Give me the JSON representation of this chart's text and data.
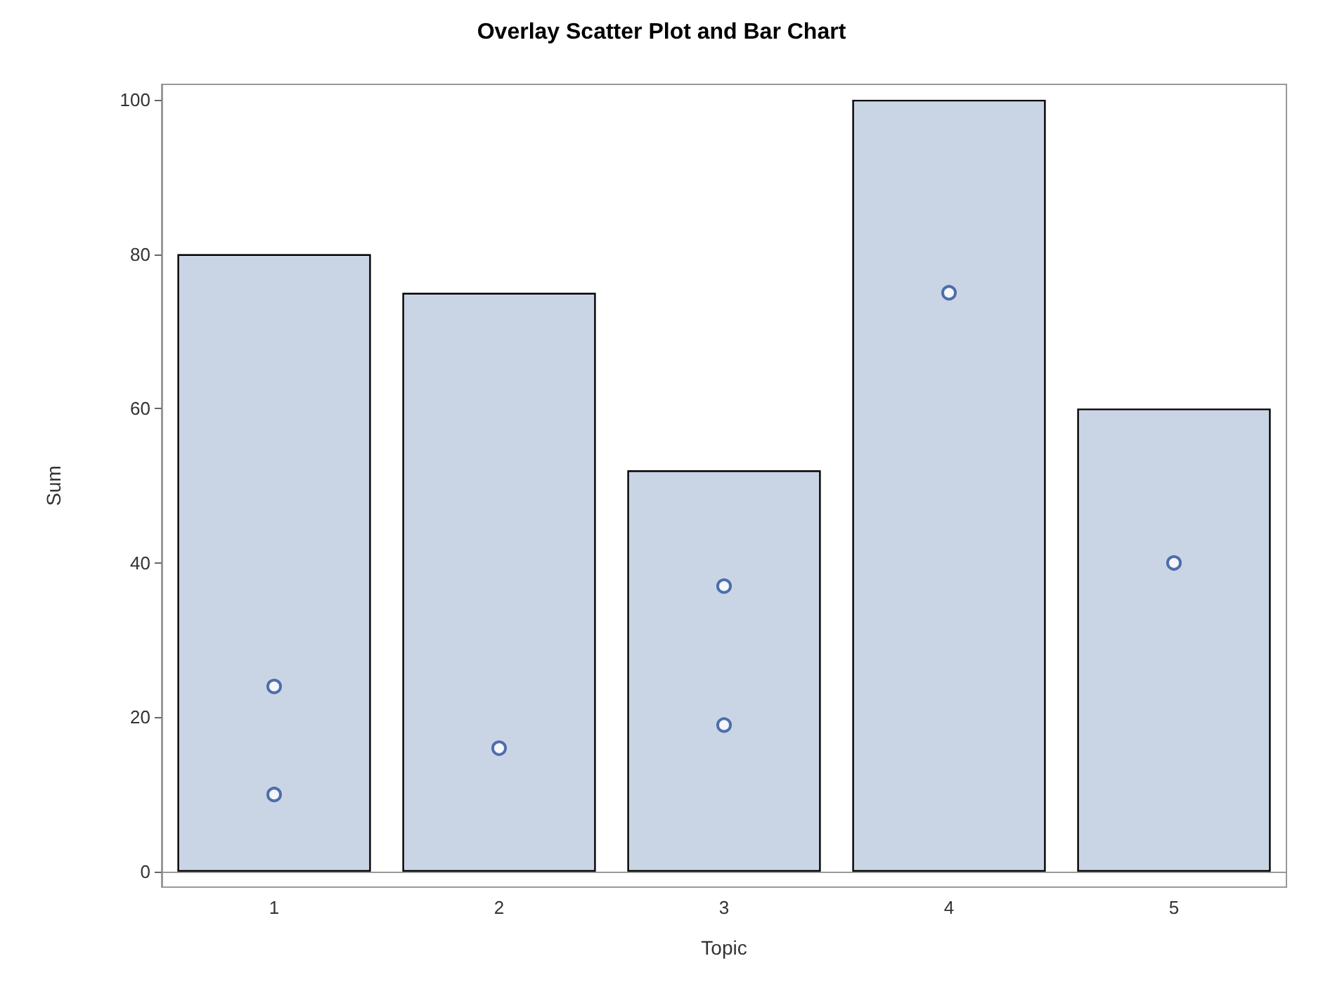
{
  "chart_data": {
    "type": "bar",
    "title": "Overlay Scatter Plot and Bar Chart",
    "xlabel": "Topic",
    "ylabel": "Sum",
    "categories": [
      "1",
      "2",
      "3",
      "4",
      "5"
    ],
    "marker": "circle",
    "ylim": [
      -2,
      102
    ],
    "yticks": [
      0,
      20,
      40,
      60,
      80,
      100
    ],
    "series": [
      {
        "color": "#c9d5e5",
        "values": [
          80,
          75,
          52,
          100,
          60
        ]
      },
      {
        "type": "scatter",
        "color": "#2a4f9a",
        "x": [
          "1",
          "1",
          "2",
          "3",
          "3",
          "4",
          "5"
        ],
        "values": [
          24,
          10,
          16,
          37,
          19,
          75,
          40
        ]
      }
    ]
  }
}
